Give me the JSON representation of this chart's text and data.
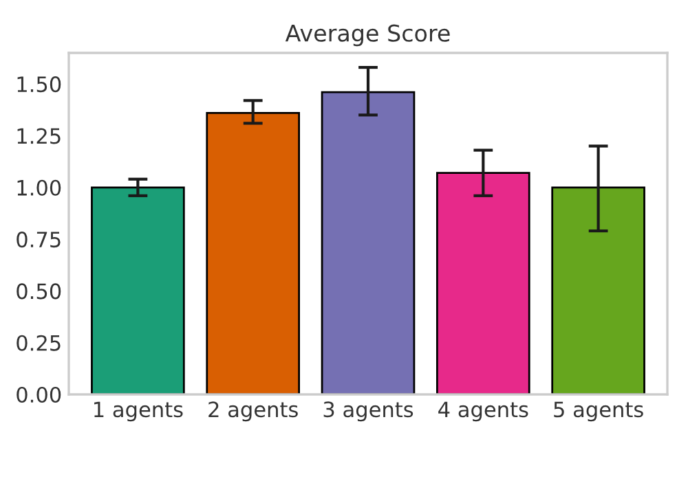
{
  "chart_data": {
    "type": "bar",
    "title": "Average Score",
    "categories": [
      "1 agents",
      "2 agents",
      "3 agents",
      "4 agents",
      "5 agents"
    ],
    "values": [
      1.0,
      1.36,
      1.46,
      1.07,
      1.0
    ],
    "errors": [
      [
        0.96,
        1.04
      ],
      [
        1.31,
        1.42
      ],
      [
        1.35,
        1.58
      ],
      [
        0.96,
        1.18
      ],
      [
        0.79,
        1.2
      ]
    ],
    "colors": [
      "#1b9e77",
      "#d95f02",
      "#7570b3",
      "#e7298a",
      "#66a61e"
    ],
    "ylim": [
      0,
      1.65
    ],
    "yticks": [
      {
        "value": 0,
        "label": "0.00"
      },
      {
        "value": 0.25,
        "label": "0.25"
      },
      {
        "value": 0.5,
        "label": "0.50"
      },
      {
        "value": 0.75,
        "label": "0.75"
      },
      {
        "value": 1,
        "label": "1.00"
      },
      {
        "value": 1.25,
        "label": "1.25"
      },
      {
        "value": 1.5,
        "label": "1.50"
      }
    ],
    "grid": false
  }
}
